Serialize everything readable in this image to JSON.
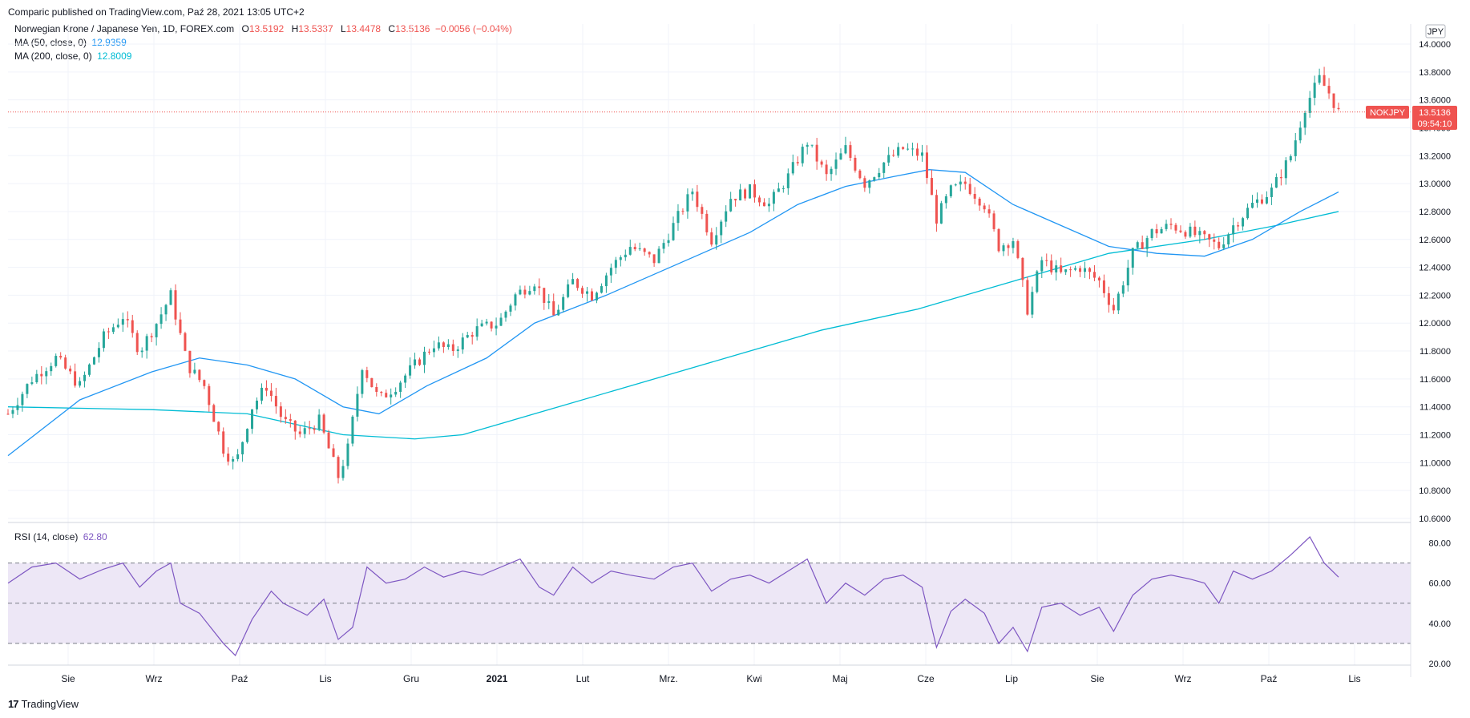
{
  "header": {
    "published": "Comparic published on TradingView.com, Paź 28, 2021 13:05 UTC+2"
  },
  "legend": {
    "symbol": "Norwegian Krone / Japanese Yen, 1D, FOREX.com",
    "o_label": "O",
    "o": "13.5192",
    "h_label": "H",
    "h": "13.5337",
    "l_label": "L",
    "l": "13.4478",
    "c_label": "C",
    "c": "13.5136",
    "change": "−0.0056 (−0.04%)",
    "ma50_label": "MA (50, close, 0)",
    "ma50_value": "12.9359",
    "ma200_label": "MA (200, close, 0)",
    "ma200_value": "12.8009",
    "rsi_label": "RSI (14, close)",
    "rsi_value": "62.80"
  },
  "price_axis": {
    "currency": "JPY",
    "ticks": [
      "14.0000",
      "13.8000",
      "13.6000",
      "13.4000",
      "13.2000",
      "13.0000",
      "12.8000",
      "12.6000",
      "12.4000",
      "12.2000",
      "12.0000",
      "11.8000",
      "11.6000",
      "11.4000",
      "11.2000",
      "11.0000",
      "10.8000",
      "10.6000"
    ],
    "symbol_tag": "NOKJPY",
    "last_price": "13.5136",
    "countdown": "09:54:10"
  },
  "rsi_axis": {
    "ticks": [
      "80.00",
      "60.00",
      "40.00",
      "20.00"
    ]
  },
  "time_axis": {
    "labels": [
      "Sie",
      "Wrz",
      "Paź",
      "Lis",
      "Gru",
      "2021",
      "Lut",
      "Mrz.",
      "Kwi",
      "Maj",
      "Cze",
      "Lip",
      "Sie",
      "Wrz",
      "Paź",
      "Lis"
    ]
  },
  "footer": {
    "brand": "TradingView",
    "logo": "17"
  },
  "colors": {
    "up": "#26a69a",
    "down": "#ef5350",
    "ma50": "#2196f3",
    "ma200": "#00bcd4",
    "rsi": "#7e57c2",
    "rsi_band": "#ede7f6"
  },
  "chart_data": {
    "type": "candlestick",
    "title": "Norwegian Krone / Japanese Yen, 1D, FOREX.com",
    "ylim": [
      10.6,
      14.0
    ],
    "x_axis_labels": [
      "Sie",
      "Wrz",
      "Paź",
      "Lis",
      "Gru",
      "2021",
      "Lut",
      "Mrz.",
      "Kwi",
      "Maj",
      "Cze",
      "Lip",
      "Sie",
      "Wrz",
      "Paź",
      "Lis"
    ],
    "price_path": [
      [
        0,
        11.35
      ],
      [
        10,
        11.6
      ],
      [
        20,
        11.75
      ],
      [
        30,
        11.55
      ],
      [
        40,
        11.9
      ],
      [
        48,
        12.05
      ],
      [
        55,
        11.8
      ],
      [
        62,
        12.0
      ],
      [
        68,
        12.2
      ],
      [
        75,
        11.7
      ],
      [
        82,
        11.55
      ],
      [
        90,
        11.1
      ],
      [
        95,
        10.98
      ],
      [
        102,
        11.4
      ],
      [
        108,
        11.55
      ],
      [
        115,
        11.3
      ],
      [
        122,
        11.2
      ],
      [
        130,
        11.3
      ],
      [
        138,
        10.9
      ],
      [
        142,
        11.1
      ],
      [
        148,
        11.7
      ],
      [
        155,
        11.45
      ],
      [
        162,
        11.55
      ],
      [
        170,
        11.7
      ],
      [
        178,
        11.85
      ],
      [
        185,
        11.8
      ],
      [
        195,
        11.95
      ],
      [
        205,
        12.0
      ],
      [
        212,
        12.2
      ],
      [
        220,
        12.3
      ],
      [
        228,
        12.05
      ],
      [
        236,
        12.3
      ],
      [
        244,
        12.2
      ],
      [
        252,
        12.4
      ],
      [
        260,
        12.55
      ],
      [
        270,
        12.45
      ],
      [
        278,
        12.7
      ],
      [
        286,
        12.95
      ],
      [
        294,
        12.6
      ],
      [
        302,
        12.9
      ],
      [
        310,
        12.95
      ],
      [
        318,
        12.85
      ],
      [
        326,
        13.05
      ],
      [
        334,
        13.3
      ],
      [
        342,
        13.05
      ],
      [
        350,
        13.25
      ],
      [
        358,
        13.0
      ],
      [
        366,
        13.15
      ],
      [
        374,
        13.25
      ],
      [
        382,
        13.2
      ],
      [
        388,
        12.75
      ],
      [
        394,
        12.95
      ],
      [
        400,
        13.0
      ],
      [
        408,
        12.85
      ],
      [
        414,
        12.55
      ],
      [
        420,
        12.6
      ],
      [
        426,
        12.1
      ],
      [
        432,
        12.45
      ],
      [
        440,
        12.35
      ],
      [
        448,
        12.4
      ],
      [
        456,
        12.3
      ],
      [
        462,
        12.1
      ],
      [
        470,
        12.5
      ],
      [
        478,
        12.65
      ],
      [
        486,
        12.7
      ],
      [
        494,
        12.65
      ],
      [
        500,
        12.6
      ],
      [
        506,
        12.55
      ],
      [
        512,
        12.7
      ],
      [
        520,
        12.85
      ],
      [
        528,
        12.95
      ],
      [
        536,
        13.2
      ],
      [
        542,
        13.55
      ],
      [
        548,
        13.75
      ],
      [
        552,
        13.65
      ],
      [
        556,
        13.51
      ]
    ],
    "ma50": [
      [
        0,
        11.05
      ],
      [
        30,
        11.45
      ],
      [
        60,
        11.65
      ],
      [
        80,
        11.75
      ],
      [
        100,
        11.7
      ],
      [
        120,
        11.6
      ],
      [
        140,
        11.4
      ],
      [
        155,
        11.35
      ],
      [
        175,
        11.55
      ],
      [
        200,
        11.75
      ],
      [
        220,
        12.0
      ],
      [
        250,
        12.2
      ],
      [
        270,
        12.35
      ],
      [
        290,
        12.5
      ],
      [
        310,
        12.65
      ],
      [
        330,
        12.85
      ],
      [
        350,
        12.98
      ],
      [
        370,
        13.05
      ],
      [
        385,
        13.1
      ],
      [
        400,
        13.08
      ],
      [
        420,
        12.85
      ],
      [
        440,
        12.7
      ],
      [
        460,
        12.55
      ],
      [
        480,
        12.5
      ],
      [
        500,
        12.48
      ],
      [
        520,
        12.6
      ],
      [
        540,
        12.8
      ],
      [
        556,
        12.94
      ]
    ],
    "ma200": [
      [
        0,
        11.4
      ],
      [
        60,
        11.38
      ],
      [
        100,
        11.35
      ],
      [
        140,
        11.2
      ],
      [
        170,
        11.17
      ],
      [
        190,
        11.2
      ],
      [
        220,
        11.35
      ],
      [
        260,
        11.55
      ],
      [
        300,
        11.75
      ],
      [
        340,
        11.95
      ],
      [
        380,
        12.1
      ],
      [
        420,
        12.3
      ],
      [
        460,
        12.5
      ],
      [
        500,
        12.6
      ],
      [
        530,
        12.7
      ],
      [
        556,
        12.8
      ]
    ],
    "rsi": {
      "ylim": [
        20,
        85
      ],
      "bands": [
        30,
        50,
        70
      ],
      "path": [
        [
          0,
          60
        ],
        [
          10,
          68
        ],
        [
          20,
          70
        ],
        [
          30,
          62
        ],
        [
          40,
          67
        ],
        [
          48,
          70
        ],
        [
          55,
          58
        ],
        [
          62,
          66
        ],
        [
          68,
          70
        ],
        [
          72,
          50
        ],
        [
          80,
          45
        ],
        [
          90,
          30
        ],
        [
          95,
          24
        ],
        [
          102,
          42
        ],
        [
          110,
          56
        ],
        [
          115,
          50
        ],
        [
          125,
          44
        ],
        [
          132,
          52
        ],
        [
          138,
          32
        ],
        [
          144,
          38
        ],
        [
          150,
          68
        ],
        [
          158,
          60
        ],
        [
          166,
          62
        ],
        [
          174,
          68
        ],
        [
          182,
          63
        ],
        [
          190,
          66
        ],
        [
          198,
          64
        ],
        [
          206,
          68
        ],
        [
          214,
          72
        ],
        [
          222,
          58
        ],
        [
          228,
          54
        ],
        [
          236,
          68
        ],
        [
          244,
          60
        ],
        [
          252,
          66
        ],
        [
          260,
          64
        ],
        [
          270,
          62
        ],
        [
          278,
          68
        ],
        [
          286,
          70
        ],
        [
          294,
          56
        ],
        [
          302,
          62
        ],
        [
          310,
          64
        ],
        [
          318,
          60
        ],
        [
          326,
          66
        ],
        [
          334,
          72
        ],
        [
          342,
          50
        ],
        [
          350,
          60
        ],
        [
          358,
          54
        ],
        [
          366,
          62
        ],
        [
          374,
          64
        ],
        [
          382,
          58
        ],
        [
          388,
          28
        ],
        [
          394,
          46
        ],
        [
          400,
          52
        ],
        [
          408,
          45
        ],
        [
          414,
          30
        ],
        [
          420,
          38
        ],
        [
          426,
          26
        ],
        [
          432,
          48
        ],
        [
          440,
          50
        ],
        [
          448,
          44
        ],
        [
          456,
          48
        ],
        [
          462,
          36
        ],
        [
          470,
          54
        ],
        [
          478,
          62
        ],
        [
          486,
          64
        ],
        [
          494,
          62
        ],
        [
          500,
          60
        ],
        [
          506,
          50
        ],
        [
          512,
          66
        ],
        [
          520,
          62
        ],
        [
          528,
          66
        ],
        [
          536,
          74
        ],
        [
          544,
          83
        ],
        [
          550,
          70
        ],
        [
          556,
          63
        ]
      ]
    }
  }
}
